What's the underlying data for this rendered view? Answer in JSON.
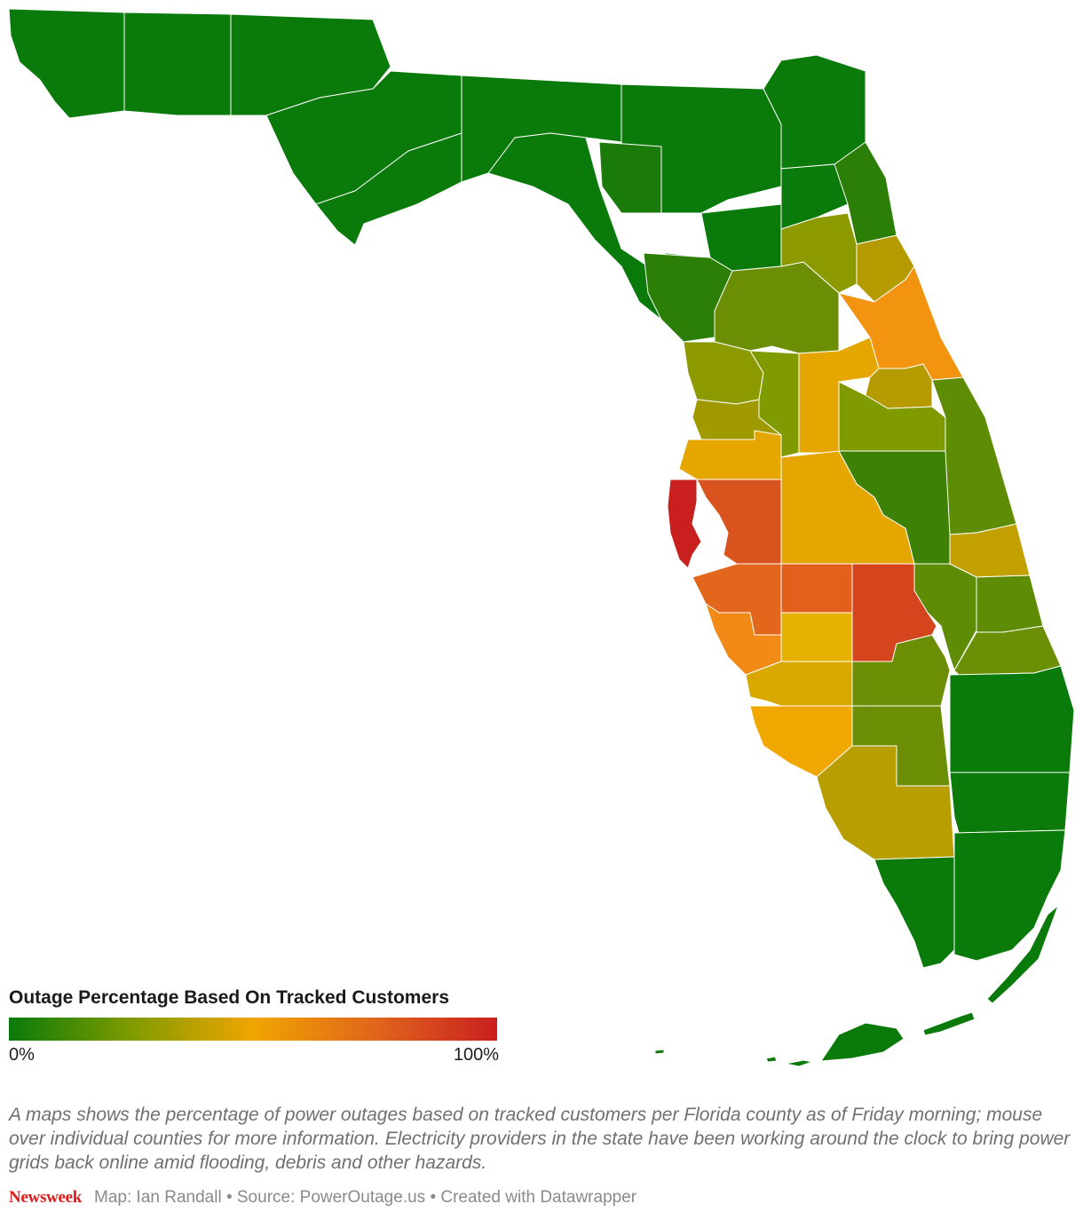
{
  "legend": {
    "title": "Outage Percentage Based On Tracked Customers",
    "min_label": "0%",
    "max_label": "100%",
    "scale_colors": [
      "#0a7a0a",
      "#7f9b00",
      "#f0a500",
      "#e0661c",
      "#c91f1f"
    ]
  },
  "caption": "A maps shows the percentage of power outages based on tracked customers per Florida county as of Friday morning; mouse over individual counties for more information. Electricity providers in the state have been working around the clock to bring power grids back online amid flooding, debris and other hazards.",
  "footer": {
    "brand": "Newsweek",
    "credits": "Map: Ian Randall • Source: PowerOutage.us • Created with Datawrapper"
  },
  "map": {
    "region": "Florida counties",
    "colors": {
      "none": "#0a7a0a",
      "low": "#4f8c05",
      "low_mid": "#8c9a00",
      "mid": "#bba000",
      "mid_high": "#e6a600",
      "high": "#f29410",
      "very_high": "#e2601c",
      "severe": "#d4451e",
      "extreme": "#c91f1f"
    }
  }
}
